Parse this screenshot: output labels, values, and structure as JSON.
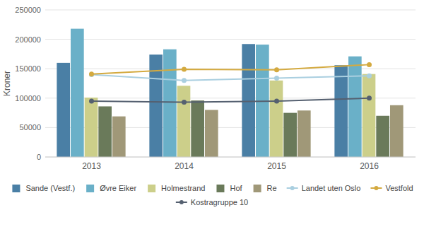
{
  "chart_data": {
    "type": "bar",
    "ylabel": "Kroner",
    "categories": [
      "2013",
      "2014",
      "2015",
      "2016"
    ],
    "series": [
      {
        "name": "Sande (Vestf.)",
        "type": "bar",
        "color": "#4a7fa5",
        "values": [
          160000,
          174000,
          192000,
          156000
        ]
      },
      {
        "name": "Øvre Eiker",
        "type": "bar",
        "color": "#6ab0c8",
        "values": [
          218000,
          183000,
          191000,
          171000
        ]
      },
      {
        "name": "Holmestrand",
        "type": "bar",
        "color": "#cccf8a",
        "values": [
          101000,
          121000,
          130000,
          141000
        ]
      },
      {
        "name": "Hof",
        "type": "bar",
        "color": "#6a7a5a",
        "values": [
          86000,
          96000,
          75000,
          70000
        ]
      },
      {
        "name": "Re",
        "type": "bar",
        "color": "#a09878",
        "values": [
          69000,
          80000,
          79000,
          88000
        ]
      },
      {
        "name": "Landet uten Oslo",
        "type": "line",
        "marker": "circle",
        "color": "#aacfe0",
        "values": [
          140000,
          130000,
          134000,
          138000
        ]
      },
      {
        "name": "Vestfold",
        "type": "line",
        "marker": "circle",
        "color": "#d4aa40",
        "values": [
          141000,
          149000,
          148000,
          157000
        ]
      },
      {
        "name": "Kostragruppe 10",
        "type": "line",
        "marker": "circle",
        "color": "#556070",
        "values": [
          95000,
          93000,
          95000,
          100000
        ]
      }
    ],
    "ylim": [
      0,
      250000
    ],
    "yticks": [
      0,
      50000,
      100000,
      150000,
      200000,
      250000
    ],
    "grid": true,
    "legend": "bottom"
  }
}
